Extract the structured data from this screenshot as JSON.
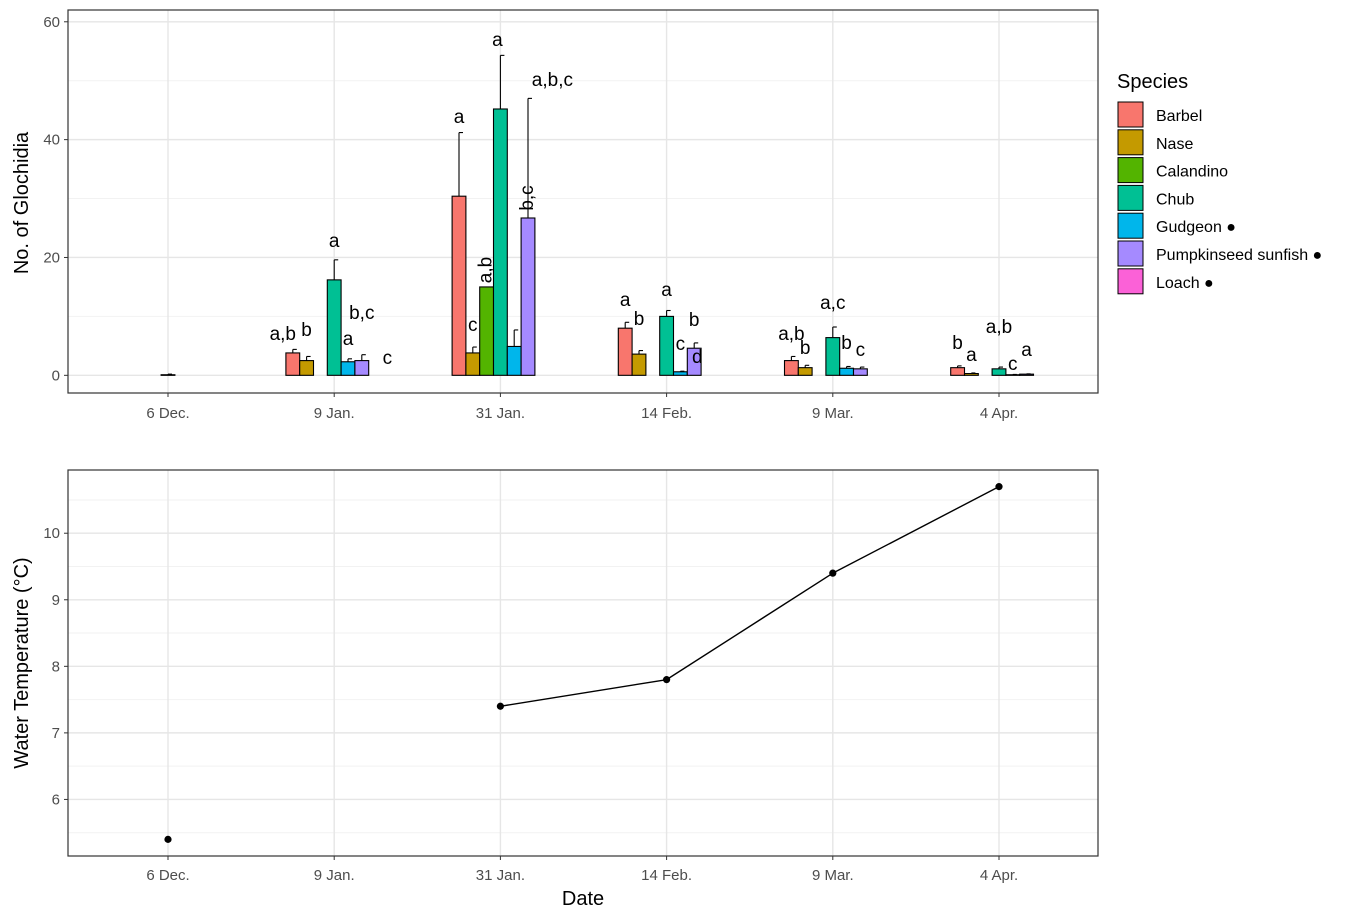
{
  "chart_data": [
    {
      "type": "bar",
      "categories": [
        "6 Dec.",
        "9 Jan.",
        "31 Jan.",
        "14 Feb.",
        "9 Mar.",
        "4 Apr."
      ],
      "ylabel": "No. of Glochidia",
      "ylim": [
        -3,
        62
      ],
      "yticks": [
        0,
        20,
        40,
        60
      ],
      "grid": true,
      "legend": {
        "title": "Species",
        "placement": "right",
        "entries": [
          {
            "label": "Barbel",
            "color": "#F8766D",
            "marker": ""
          },
          {
            "label": "Nase",
            "color": "#C49A00",
            "marker": ""
          },
          {
            "label": "Calandino",
            "color": "#53B400",
            "marker": ""
          },
          {
            "label": "Chub",
            "color": "#00C094",
            "marker": ""
          },
          {
            "label": "Gudgeon",
            "color": "#00B6EB",
            "marker": "●"
          },
          {
            "label": "Pumpkinseed sunfish",
            "color": "#A58AFF",
            "marker": "●"
          },
          {
            "label": "Loach",
            "color": "#FB61D7",
            "marker": "●"
          }
        ]
      },
      "series": [
        {
          "name": "Barbel",
          "values": [
            0,
            3.8,
            30.4,
            8.0,
            2.5,
            1.3
          ],
          "errors": [
            0,
            0.6,
            10.8,
            1.0,
            0.7,
            0.3
          ],
          "labels": [
            "",
            "a,b",
            "a",
            "a",
            "a,b",
            "b"
          ]
        },
        {
          "name": "Nase",
          "values": [
            0,
            2.5,
            3.8,
            3.6,
            1.3,
            0.3
          ],
          "errors": [
            0,
            0.7,
            1.0,
            0.6,
            0.4,
            0.1
          ],
          "labels": [
            "",
            "b",
            "c",
            "b",
            "b",
            "a"
          ]
        },
        {
          "name": "Calandino",
          "values": [
            0,
            0,
            15.0,
            0,
            0,
            0
          ],
          "errors": [
            0,
            0,
            0,
            0,
            0,
            0
          ],
          "labels": [
            "",
            "",
            "a,b",
            "",
            "",
            ""
          ]
        },
        {
          "name": "Chub",
          "values": [
            0.1,
            16.2,
            45.2,
            10.0,
            6.4,
            1.1
          ],
          "errors": [
            0.1,
            3.4,
            9.1,
            1.0,
            1.8,
            0.3
          ],
          "labels": [
            "",
            "a",
            "a",
            "a",
            "a,c",
            "a,b"
          ]
        },
        {
          "name": "Gudgeon",
          "values": [
            0,
            2.3,
            4.9,
            0.6,
            1.2,
            0.1
          ],
          "errors": [
            0,
            0.5,
            2.8,
            0.1,
            0.3,
            0.05
          ],
          "labels": [
            "",
            "a",
            "",
            "c",
            "b",
            "c"
          ]
        },
        {
          "name": "Pumpkinseed sunfish",
          "values": [
            0,
            2.5,
            26.7,
            4.6,
            1.1,
            0.2
          ],
          "errors": [
            0,
            1.0,
            20.3,
            0.9,
            0.3,
            0.05
          ],
          "labels": [
            "",
            "b,c",
            "b,c",
            "b",
            "c",
            "a"
          ]
        },
        {
          "name": "Loach",
          "values": [
            0,
            0,
            0,
            0,
            0,
            0
          ],
          "errors": [
            0,
            0,
            0,
            0,
            0,
            0
          ],
          "labels": [
            "",
            "c",
            "a,b,c",
            "d",
            "",
            ""
          ]
        }
      ]
    },
    {
      "type": "line",
      "categories": [
        "6 Dec.",
        "9 Jan.",
        "31 Jan.",
        "14 Feb.",
        "9 Mar.",
        "4 Apr."
      ],
      "x": [
        "6 Dec.",
        "31 Jan.",
        "14 Feb.",
        "9 Mar.",
        "4 Apr."
      ],
      "y": [
        5.4,
        7.4,
        7.8,
        9.4,
        10.7
      ],
      "connected": [
        false,
        true,
        true,
        true,
        true
      ],
      "xlabel": "Date",
      "ylabel": "Water Temperature (°C)",
      "ylim": [
        5.15,
        10.95
      ],
      "yticks": [
        6,
        7,
        8,
        9,
        10
      ],
      "grid": true,
      "line_color": "#000000"
    }
  ]
}
